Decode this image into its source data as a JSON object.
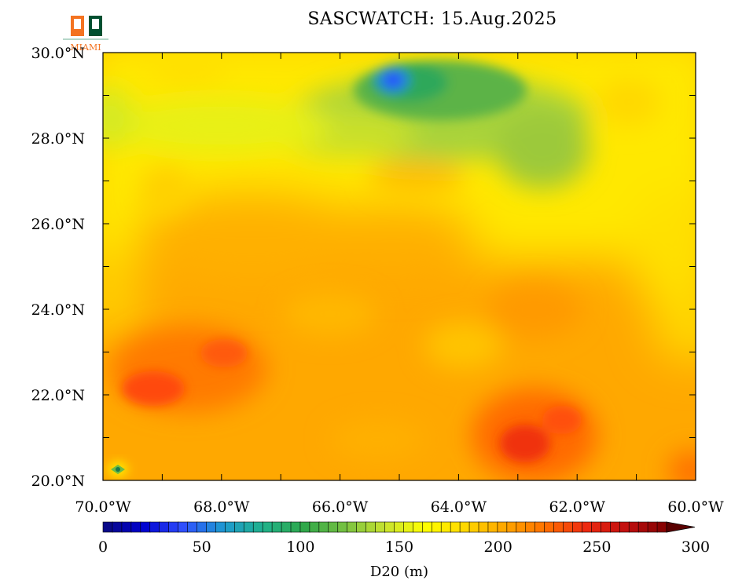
{
  "header": {
    "title": "SASCWATCH: 15.Aug.2025",
    "logo_text": "MIAMI"
  },
  "map": {
    "variable": "D20",
    "lon_range": [
      -70,
      -60
    ],
    "lat_range": [
      20,
      30
    ],
    "x_tick_labels": [
      "70.0°W",
      "68.0°W",
      "66.0°W",
      "64.0°W",
      "62.0°W",
      "60.0°W"
    ],
    "y_tick_labels": [
      "20.0°N",
      "22.0°N",
      "24.0°N",
      "26.0°N",
      "28.0°N",
      "30.0°N"
    ],
    "features": [
      {
        "kind": "low",
        "lon": -65.1,
        "lat": 29.3,
        "value": 45
      },
      {
        "kind": "high",
        "lon": -69.2,
        "lat": 22.0,
        "value": 255
      },
      {
        "kind": "high",
        "lon": -62.8,
        "lat": 20.8,
        "value": 265
      },
      {
        "kind": "low",
        "lon": -69.75,
        "lat": 20.25,
        "value": 110
      }
    ]
  },
  "colorbar": {
    "label": "D20 (m)",
    "range": [
      0,
      300
    ],
    "tick_labels": [
      "0",
      "50",
      "100",
      "150",
      "200",
      "250",
      "300"
    ],
    "colors": [
      "#0a0a80",
      "#0000d0",
      "#3050ff",
      "#1d9ad0",
      "#21b28a",
      "#2fa84a",
      "#76c142",
      "#c7e330",
      "#ffff00",
      "#ffd700",
      "#ffa500",
      "#ff7000",
      "#ee2a10",
      "#c21010",
      "#800000"
    ],
    "extend": "max"
  }
}
